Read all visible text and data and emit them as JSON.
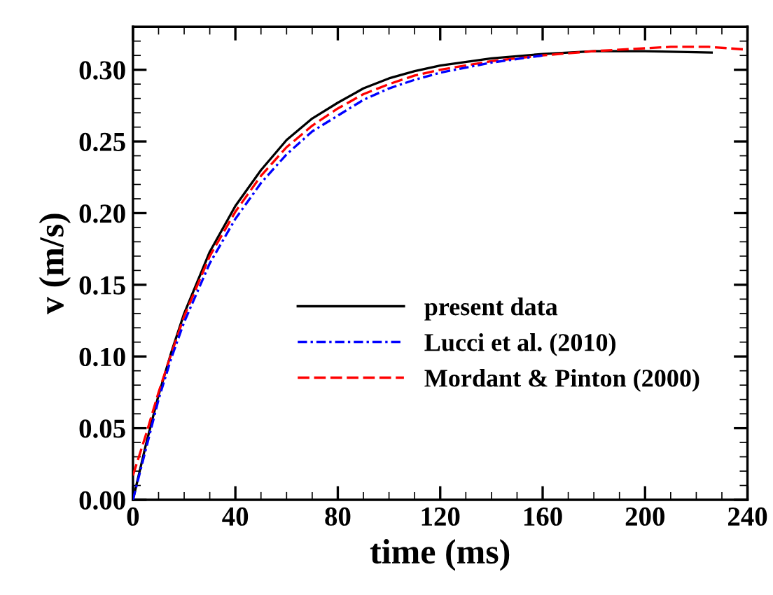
{
  "chart_data": {
    "type": "line",
    "xlabel": "time (ms)",
    "ylabel": "v (m/s)",
    "xlim": [
      0,
      240
    ],
    "xticks": [
      0,
      40,
      80,
      120,
      160,
      200,
      240
    ],
    "ylim": [
      0,
      0.33
    ],
    "yticks": [
      {
        "value": 0,
        "label": "0.00"
      },
      {
        "value": 0.05,
        "label": "0.05"
      },
      {
        "value": 0.1,
        "label": "0.10"
      },
      {
        "value": 0.15,
        "label": "0.15"
      },
      {
        "value": 0.2,
        "label": "0.20"
      },
      {
        "value": 0.25,
        "label": "0.25"
      },
      {
        "value": 0.3,
        "label": "0.30"
      }
    ],
    "grid": false,
    "legend": "bottom right",
    "marker": "none",
    "series": [
      {
        "name": "present data",
        "color": "#000000",
        "line_style": "solid",
        "x": [
          0,
          5,
          10,
          15,
          20,
          30,
          40,
          50,
          60,
          70,
          80,
          90,
          100,
          110,
          120,
          140,
          160,
          180,
          200,
          226
        ],
        "values": [
          0,
          0.038,
          0.073,
          0.103,
          0.13,
          0.173,
          0.205,
          0.23,
          0.251,
          0.266,
          0.277,
          0.287,
          0.294,
          0.299,
          0.303,
          0.308,
          0.311,
          0.313,
          0.313,
          0.312
        ]
      },
      {
        "name": "Lucci et al. (2010)",
        "color": "#0000ff",
        "line_style": "dashdot",
        "x": [
          0,
          5,
          10,
          15,
          20,
          30,
          40,
          50,
          60,
          70,
          80,
          90,
          100,
          110,
          120,
          140,
          160
        ],
        "values": [
          0,
          0.035,
          0.07,
          0.099,
          0.124,
          0.165,
          0.196,
          0.221,
          0.241,
          0.257,
          0.268,
          0.279,
          0.287,
          0.293,
          0.298,
          0.305,
          0.31
        ]
      },
      {
        "name": "Mordant & Pinton (2000)",
        "color": "#ff0000",
        "line_style": "dashed",
        "x": [
          0,
          5,
          10,
          15,
          20,
          30,
          40,
          50,
          60,
          70,
          80,
          90,
          100,
          110,
          120,
          140,
          160,
          180,
          200,
          210,
          225,
          240
        ],
        "values": [
          0.017,
          0.045,
          0.075,
          0.102,
          0.128,
          0.17,
          0.201,
          0.226,
          0.246,
          0.261,
          0.273,
          0.283,
          0.29,
          0.296,
          0.3,
          0.306,
          0.31,
          0.313,
          0.315,
          0.316,
          0.316,
          0.314
        ]
      }
    ]
  }
}
